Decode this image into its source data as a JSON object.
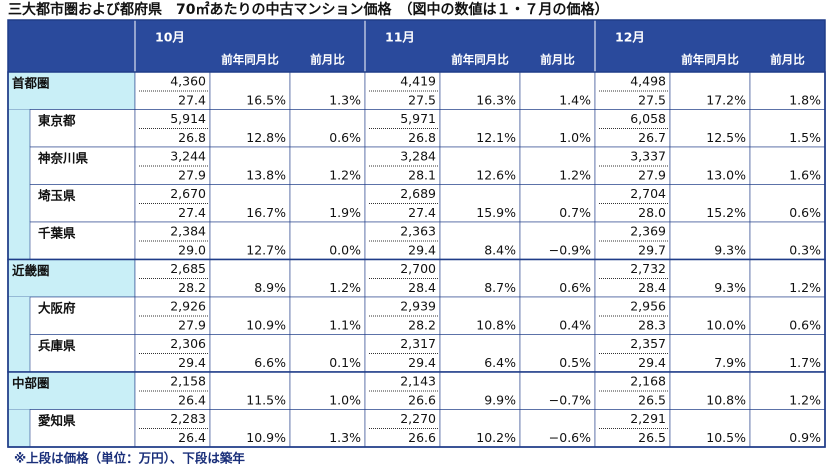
{
  "title": "三大都市圏および都府県　70㎡あたりの中古マンション価格　（図中の数値は１・７月の価格）",
  "header": {
    "months": [
      "10月",
      "11月",
      "12月"
    ],
    "sub": [
      "前年同月比",
      "前月比"
    ]
  },
  "groups": [
    {
      "name": "首都圏",
      "cells": [
        [
          "4,360",
          "27.4",
          "16.5%",
          "1.3%"
        ],
        [
          "4,419",
          "27.5",
          "16.3%",
          "1.4%"
        ],
        [
          "4,498",
          "27.5",
          "17.2%",
          "1.8%"
        ]
      ],
      "members": [
        {
          "name": "東京都",
          "cells": [
            [
              "5,914",
              "26.8",
              "12.8%",
              "0.6%"
            ],
            [
              "5,971",
              "26.8",
              "12.1%",
              "1.0%"
            ],
            [
              "6,058",
              "26.7",
              "12.5%",
              "1.5%"
            ]
          ]
        },
        {
          "name": "神奈川県",
          "cells": [
            [
              "3,244",
              "27.9",
              "13.8%",
              "1.2%"
            ],
            [
              "3,284",
              "28.1",
              "12.6%",
              "1.2%"
            ],
            [
              "3,337",
              "27.9",
              "13.0%",
              "1.6%"
            ]
          ]
        },
        {
          "name": "埼玉県",
          "cells": [
            [
              "2,670",
              "27.4",
              "16.7%",
              "1.9%"
            ],
            [
              "2,689",
              "27.4",
              "15.9%",
              "0.7%"
            ],
            [
              "2,704",
              "28.0",
              "15.2%",
              "0.6%"
            ]
          ]
        },
        {
          "name": "千葉県",
          "cells": [
            [
              "2,384",
              "29.0",
              "12.7%",
              "0.0%"
            ],
            [
              "2,363",
              "29.4",
              "8.4%",
              "−0.9%"
            ],
            [
              "2,369",
              "29.7",
              "9.3%",
              "0.3%"
            ]
          ]
        }
      ]
    },
    {
      "name": "近畿圏",
      "cells": [
        [
          "2,685",
          "28.2",
          "8.9%",
          "1.2%"
        ],
        [
          "2,700",
          "28.4",
          "8.7%",
          "0.6%"
        ],
        [
          "2,732",
          "28.4",
          "9.3%",
          "1.2%"
        ]
      ],
      "members": [
        {
          "name": "大阪府",
          "cells": [
            [
              "2,926",
              "27.9",
              "10.9%",
              "1.1%"
            ],
            [
              "2,939",
              "28.2",
              "10.8%",
              "0.4%"
            ],
            [
              "2,956",
              "28.3",
              "10.0%",
              "0.6%"
            ]
          ]
        },
        {
          "name": "兵庫県",
          "cells": [
            [
              "2,306",
              "29.4",
              "6.6%",
              "0.1%"
            ],
            [
              "2,317",
              "29.4",
              "6.4%",
              "0.5%"
            ],
            [
              "2,357",
              "29.4",
              "7.9%",
              "1.7%"
            ]
          ]
        }
      ]
    },
    {
      "name": "中部圏",
      "cells": [
        [
          "2,158",
          "26.4",
          "11.5%",
          "1.0%"
        ],
        [
          "2,143",
          "26.6",
          "9.9%",
          "−0.7%"
        ],
        [
          "2,168",
          "26.5",
          "10.8%",
          "1.2%"
        ]
      ],
      "members": [
        {
          "name": "愛知県",
          "cells": [
            [
              "2,283",
              "26.4",
              "10.9%",
              "1.3%"
            ],
            [
              "2,270",
              "26.6",
              "10.2%",
              "−0.6%"
            ],
            [
              "2,291",
              "26.5",
              "10.5%",
              "0.9%"
            ]
          ]
        }
      ]
    }
  ],
  "footnote": "※上段は価格（単位：万円）、下段は築年"
}
